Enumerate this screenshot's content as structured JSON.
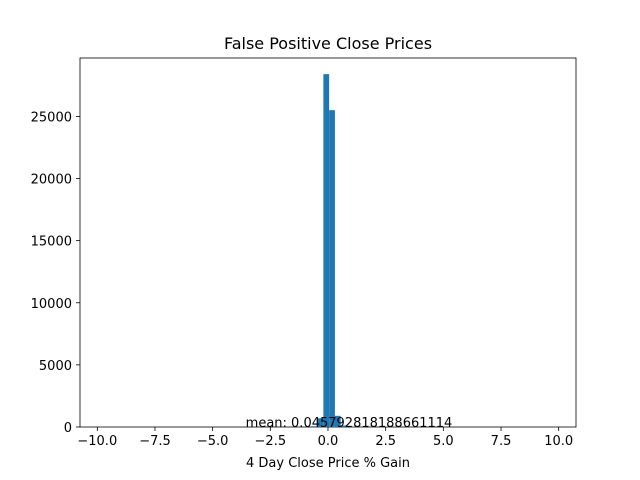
{
  "chart_data": {
    "type": "bar",
    "title": "False Positive Close Prices",
    "xlabel": "4 Day Close Price % Gain",
    "ylabel": "",
    "xlim": [
      -10.75,
      10.75
    ],
    "ylim": [
      0,
      29700
    ],
    "xticks": [
      -10.0,
      -7.5,
      -5.0,
      -2.5,
      0.0,
      2.5,
      5.0,
      7.5,
      10.0
    ],
    "xtick_labels": [
      "−10.0",
      "−7.5",
      "−5.0",
      "−2.5",
      "0.0",
      "2.5",
      "5.0",
      "7.5",
      "10.0"
    ],
    "yticks": [
      0,
      5000,
      10000,
      15000,
      20000,
      25000
    ],
    "ytick_labels": [
      "0",
      "5000",
      "10000",
      "15000",
      "20000",
      "25000"
    ],
    "grid": false,
    "color": "#1f77b4",
    "series": [
      {
        "bins": [
          {
            "x0": -0.7,
            "x1": -0.45,
            "count": 60
          },
          {
            "x0": -0.45,
            "x1": -0.2,
            "count": 700
          },
          {
            "x0": -0.2,
            "x1": 0.05,
            "count": 28400
          },
          {
            "x0": 0.05,
            "x1": 0.3,
            "count": 25500
          },
          {
            "x0": 0.3,
            "x1": 0.55,
            "count": 900
          },
          {
            "x0": 0.55,
            "x1": 0.8,
            "count": 120
          },
          {
            "x0": 0.8,
            "x1": 1.05,
            "count": 30
          }
        ]
      }
    ],
    "annotation": "mean: 0.04579281818866111​4"
  }
}
